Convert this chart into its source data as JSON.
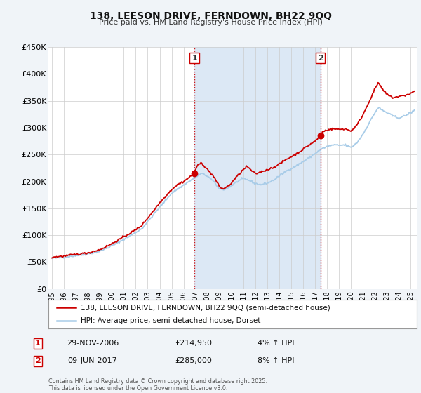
{
  "title": "138, LEESON DRIVE, FERNDOWN, BH22 9QQ",
  "subtitle": "Price paid vs. HM Land Registry's House Price Index (HPI)",
  "bg_color": "#f0f4f8",
  "plot_bg_color": "#ffffff",
  "grid_color": "#cccccc",
  "hpi_color": "#a8cce8",
  "price_color": "#cc0000",
  "marker_color": "#cc0000",
  "vline_color": "#cc0000",
  "shade_color": "#dce8f5",
  "ylim": [
    0,
    450000
  ],
  "xlim_start": 1994.7,
  "xlim_end": 2025.5,
  "ann1_x": 2006.91,
  "ann1_price": 214950,
  "ann1_date": "29-NOV-2006",
  "ann1_pct": "4% ↑ HPI",
  "ann1_label": "1",
  "ann2_x": 2017.44,
  "ann2_price": 285000,
  "ann2_date": "09-JUN-2017",
  "ann2_pct": "8% ↑ HPI",
  "ann2_label": "2",
  "legend_label1": "138, LEESON DRIVE, FERNDOWN, BH22 9QQ (semi-detached house)",
  "legend_label2": "HPI: Average price, semi-detached house, Dorset",
  "footer": "Contains HM Land Registry data © Crown copyright and database right 2025.\nThis data is licensed under the Open Government Licence v3.0.",
  "yticks": [
    0,
    50000,
    100000,
    150000,
    200000,
    250000,
    300000,
    350000,
    400000,
    450000
  ],
  "ytick_labels": [
    "£0",
    "£50K",
    "£100K",
    "£150K",
    "£200K",
    "£250K",
    "£300K",
    "£350K",
    "£400K",
    "£450K"
  ]
}
